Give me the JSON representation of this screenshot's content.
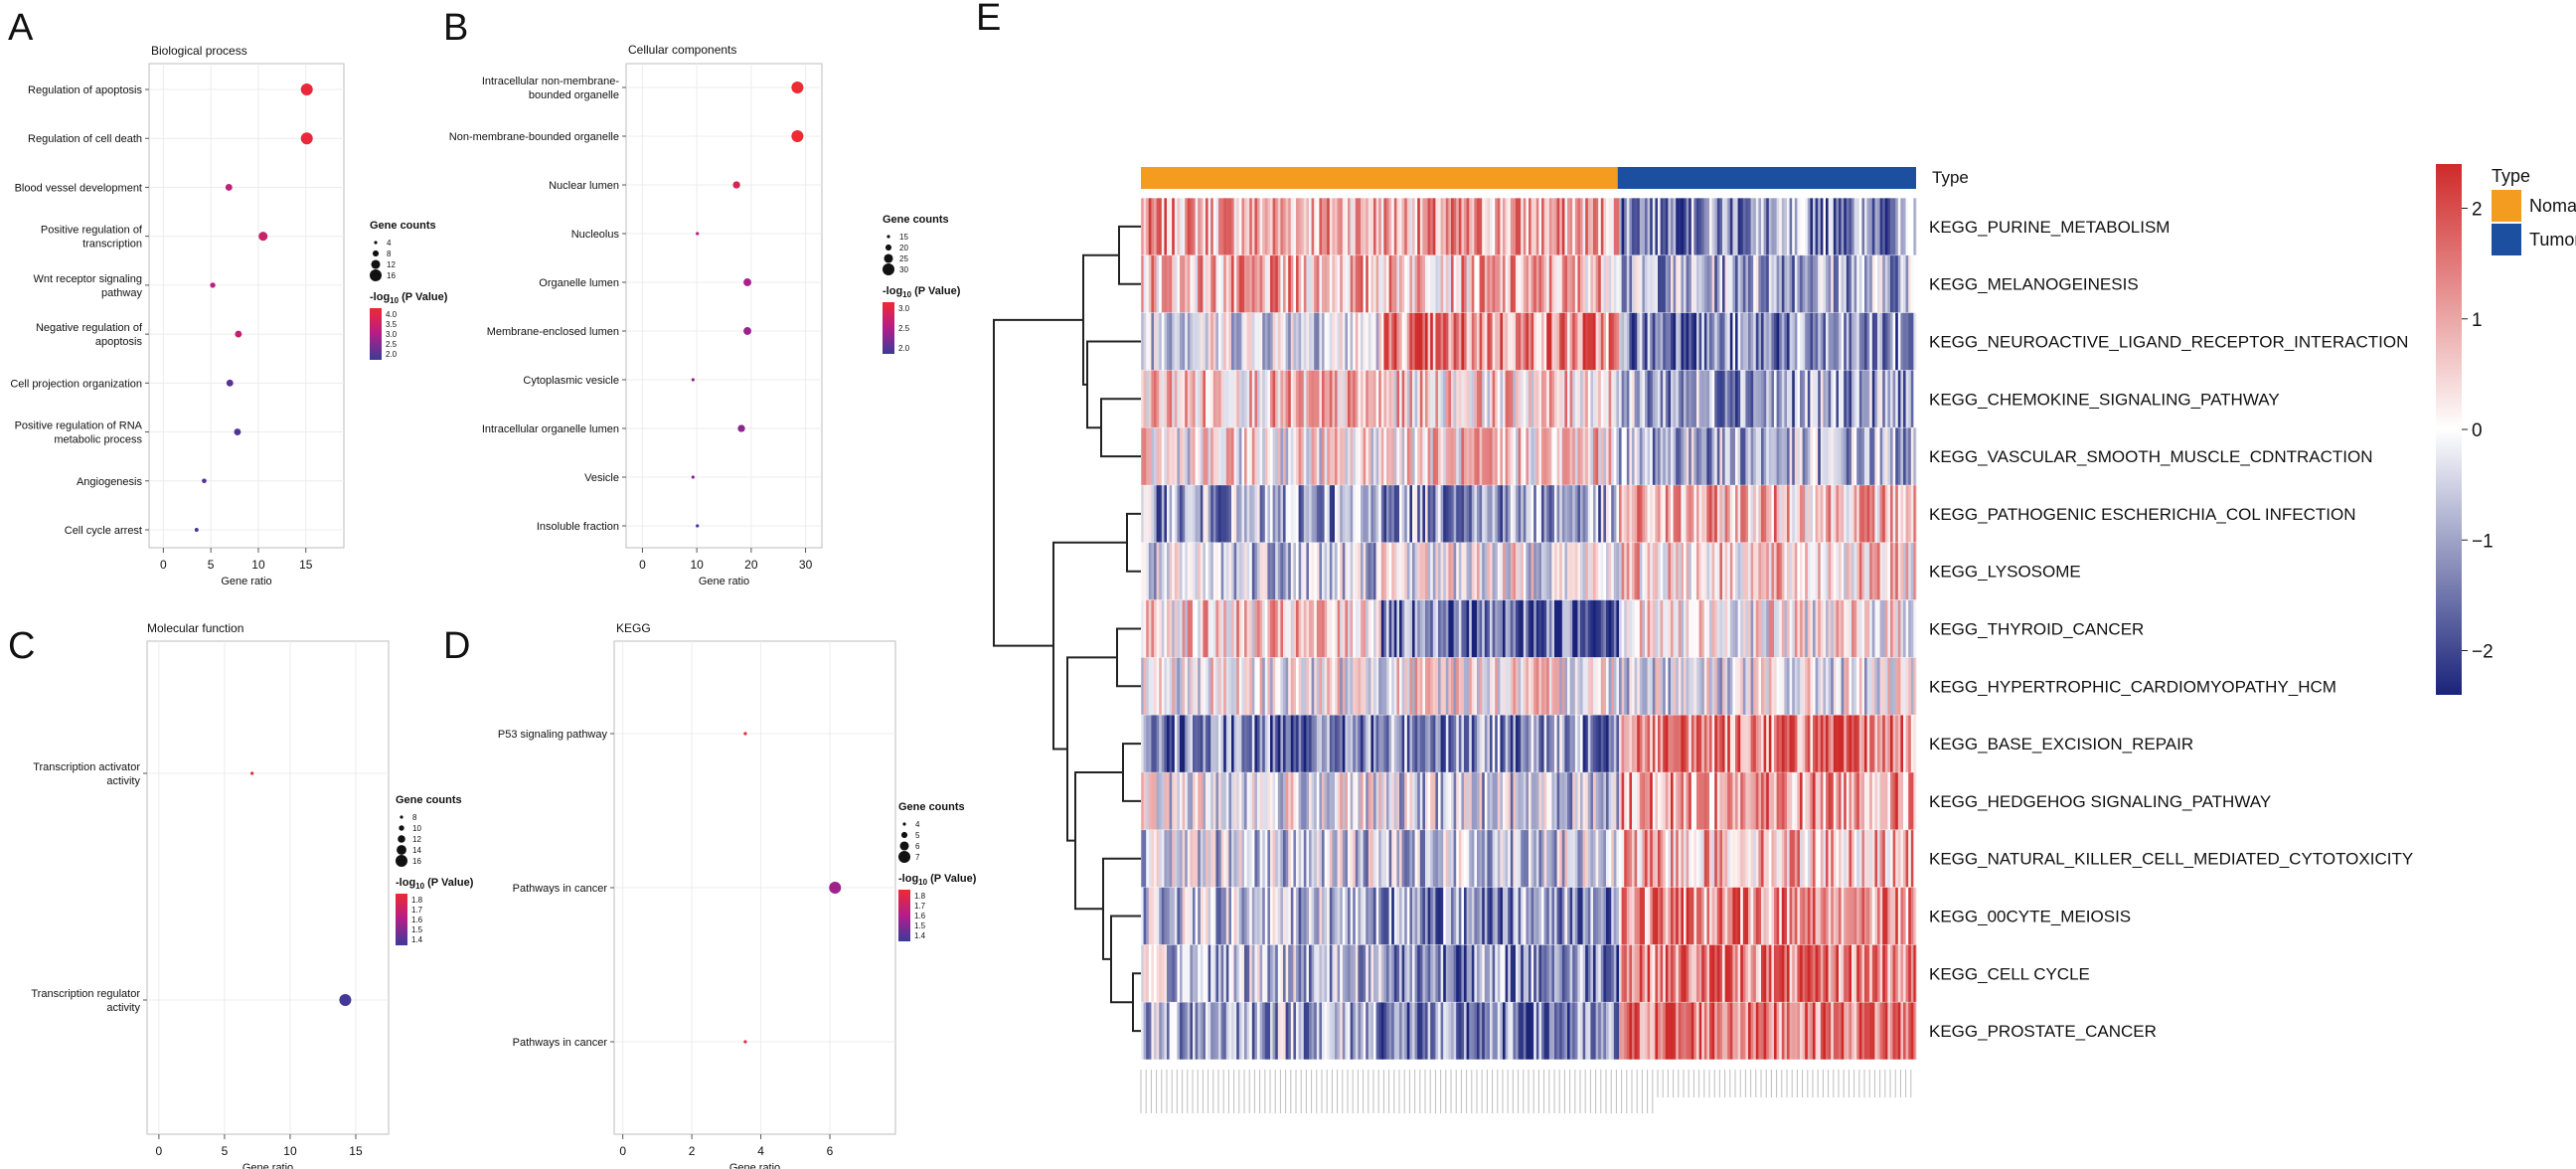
{
  "panels": {
    "A": {
      "letter": "A",
      "title": "Biological process"
    },
    "B": {
      "letter": "B",
      "title": "Cellular components"
    },
    "C": {
      "letter": "C",
      "title": "Molecular function"
    },
    "D": {
      "letter": "D",
      "title": "KEGG"
    },
    "E": {
      "letter": "E"
    }
  },
  "chart_data": [
    {
      "panel": "A",
      "type": "scatter",
      "title": "Biological process",
      "xlabel": "Gene ratio",
      "xticks": [
        0,
        5,
        10,
        15
      ],
      "xlim": [
        -1.5,
        19
      ],
      "categories": [
        "Regulation of apoptosis",
        "Regulation of cell death",
        "Blood vessel development",
        "Positive regulation of\ntranscription",
        "Wnt receptor signaling\npathway",
        "Negative regulation of\napoptosis",
        "Cell projection organization",
        "Positive regulation of RNA\nmetabolic process",
        "Angiogenesis",
        "Cell cycle arrest"
      ],
      "x": [
        15.1,
        15.1,
        6.9,
        10.5,
        5.2,
        7.9,
        7.0,
        7.8,
        4.3,
        3.5
      ],
      "size": [
        17,
        17,
        9,
        12,
        7,
        9,
        9,
        9,
        6,
        5
      ],
      "color": [
        4.0,
        4.0,
        3.2,
        3.4,
        3.1,
        3.3,
        2.1,
        2.0,
        2.0,
        1.9
      ],
      "legend_size": {
        "title": "Gene counts",
        "values": [
          4,
          8,
          12,
          16
        ]
      },
      "legend_color": {
        "title": "-log10 (P Value)",
        "ticks": [
          "4.0",
          "3.5",
          "3.0",
          "2.5",
          "2.0"
        ],
        "range": [
          1.8,
          4.1
        ]
      }
    },
    {
      "panel": "B",
      "type": "scatter",
      "title": "Cellular components",
      "xlabel": "Gene ratio",
      "xticks": [
        0,
        10,
        20,
        30
      ],
      "xlim": [
        -3,
        33
      ],
      "categories": [
        "Intracellular non-membrane-\nbounded organelle",
        "Non-membrane-bounded organelle",
        "Nuclear lumen",
        "Nucleolus",
        "Organelle lumen",
        "Membrane-enclosed lumen",
        "Cytoplasmic vesicle",
        "Intracellular organelle lumen",
        "Vesicle",
        "Insoluble fraction"
      ],
      "x": [
        28.5,
        28.5,
        17.3,
        10.1,
        19.3,
        19.3,
        9.3,
        18.2,
        9.3,
        10.1
      ],
      "size": [
        30,
        30,
        22,
        14,
        23,
        23,
        13,
        22,
        13,
        14
      ],
      "color": [
        3.3,
        3.3,
        3.0,
        2.6,
        2.5,
        2.4,
        2.3,
        2.3,
        2.2,
        1.9
      ],
      "legend_size": {
        "title": "Gene counts",
        "values": [
          15,
          20,
          25,
          30
        ]
      },
      "legend_color": {
        "title": "-log10 (P Value)",
        "ticks": [
          "3.0",
          "2.5",
          "2.0"
        ],
        "range": [
          1.8,
          3.3
        ]
      }
    },
    {
      "panel": "C",
      "type": "scatter",
      "title": "Molecular function",
      "xlabel": "Gene ratio",
      "xticks": [
        0,
        5,
        10,
        15
      ],
      "xlim": [
        -0.9,
        17.5
      ],
      "categories": [
        "Transcription activator\nactivity",
        "Transcription regulator\nactivity"
      ],
      "x": [
        7.1,
        14.2
      ],
      "size": [
        8,
        16
      ],
      "color": [
        1.85,
        1.32
      ],
      "legend_size": {
        "title": "Gene counts",
        "values": [
          8,
          10,
          12,
          14,
          16
        ]
      },
      "legend_color": {
        "title": "-log10 (P Value)",
        "ticks": [
          "1.8",
          "1.7",
          "1.6",
          "1.5",
          "1.4"
        ],
        "range": [
          1.3,
          1.9
        ]
      }
    },
    {
      "panel": "D",
      "type": "scatter",
      "title": "KEGG",
      "xlabel": "Gene ratio",
      "xticks": [
        0,
        2,
        4,
        6
      ],
      "xlim": [
        -0.25,
        7.9
      ],
      "categories": [
        "P53 signaling pathway",
        "Pathways in cancer",
        "Pathways in cancer"
      ],
      "x": [
        3.55,
        6.15,
        3.55
      ],
      "size": [
        4,
        7,
        4
      ],
      "color": [
        1.85,
        1.55,
        1.85
      ],
      "legend_size": {
        "title": "Gene counts",
        "values": [
          4,
          5,
          6,
          7
        ]
      },
      "legend_color": {
        "title": "-log10 (P Value)",
        "ticks": [
          "1.8",
          "1.7",
          "1.6",
          "1.5",
          "1.4"
        ],
        "range": [
          1.3,
          1.9
        ]
      }
    },
    {
      "panel": "E",
      "type": "heatmap",
      "rows": [
        "KEGG_PURINE_METABOLISM",
        "KEGG_MELANOGEINESIS",
        "KEGG_NEUROACTIVE_LIGAND_RECEPTOR_INTERACTION",
        "KEGG_CHEMOKINE_SIGNALING_PATHWAY",
        "KEGG_VASCULAR_SMOOTH_MUSCLE_CDNTRACTION",
        "KEGG_PATHOGENIC ESCHERICHIA_COL INFECTION",
        "KEGG_LYSOSOME",
        "KEGG_THYROID_CANCER",
        "KEGG_HYPERTROPHIC_CARDIOMYOPATHY_HCM",
        "KEGG_BASE_EXCISION_REPAIR",
        "KEGG_HEDGEHOG SIGNALING_PATHWAY",
        "KEGG_NATURAL_KILLER_CELL_MEDIATED_CYTOTOXICITY",
        "KEGG_00CYTE_MEIOSIS",
        "KEGG_CELL CYCLE",
        "KEGG_PROSTATE_CANCER"
      ],
      "row_means_normal": [
        0.6,
        0.5,
        -0.1,
        0.4,
        0.1,
        -0.6,
        -0.3,
        0.3,
        0.0,
        -0.9,
        -0.1,
        -0.3,
        -0.4,
        -0.4,
        -0.5
      ],
      "row_means_normal_late": [
        0.6,
        0.5,
        0.8,
        0.3,
        0.3,
        -0.6,
        0.0,
        -1.0,
        0.1,
        -0.7,
        -0.3,
        -0.3,
        -0.7,
        -0.7,
        -0.9
      ],
      "row_means_tumor": [
        -0.7,
        -0.5,
        -0.8,
        -0.6,
        -0.5,
        0.5,
        0.3,
        0.1,
        -0.1,
        0.9,
        0.7,
        0.5,
        0.8,
        0.9,
        1.0
      ],
      "annotation": {
        "title": "Type",
        "groups": [
          {
            "name": "Nomal",
            "color": "#f39c1f",
            "fraction": 0.615
          },
          {
            "name": "Tumor",
            "color": "#1c4fa0",
            "fraction": 0.385
          }
        ]
      },
      "color_scale": {
        "ticks": [
          "2",
          "1",
          "0",
          "−1",
          "−2"
        ],
        "range": [
          -2.4,
          2.4
        ],
        "low": "#1a237a",
        "mid": "#ffffff",
        "high": "#cf2a2a"
      }
    }
  ]
}
